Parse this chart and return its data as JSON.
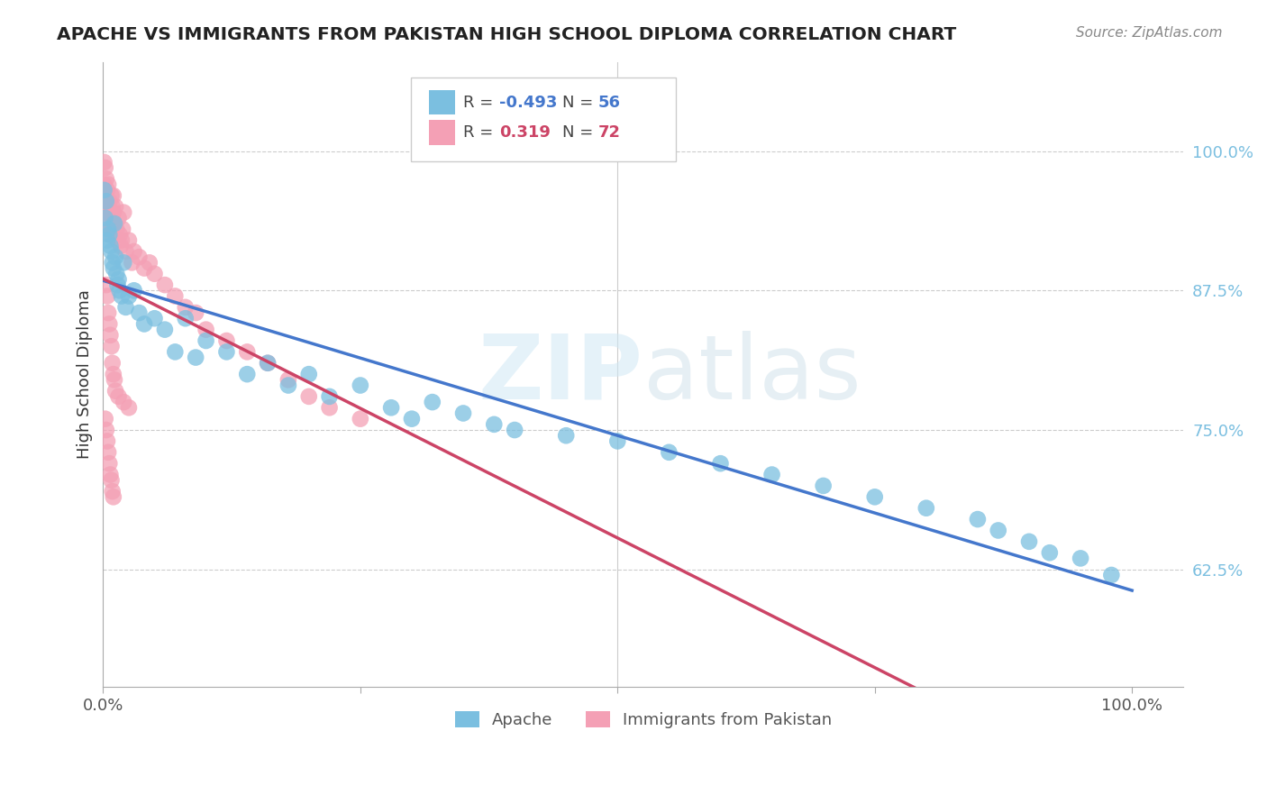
{
  "title": "APACHE VS IMMIGRANTS FROM PAKISTAN HIGH SCHOOL DIPLOMA CORRELATION CHART",
  "source": "Source: ZipAtlas.com",
  "ylabel": "High School Diploma",
  "xlim": [
    0.0,
    1.05
  ],
  "ylim": [
    0.52,
    1.08
  ],
  "xticks": [
    0.0,
    0.25,
    0.5,
    0.75,
    1.0
  ],
  "xtick_labels": [
    "0.0%",
    "",
    "",
    "",
    "100.0%"
  ],
  "ytick_labels": [
    "62.5%",
    "75.0%",
    "87.5%",
    "100.0%"
  ],
  "yticks": [
    0.625,
    0.75,
    0.875,
    1.0
  ],
  "apache_color": "#7bbfe0",
  "pakistan_color": "#f4a0b5",
  "apache_line_color": "#4477cc",
  "pakistan_line_color": "#cc4466",
  "watermark": "ZIPatlas",
  "background_color": "#ffffff",
  "apache_scatter_x": [
    0.001,
    0.002,
    0.003,
    0.004,
    0.005,
    0.006,
    0.007,
    0.008,
    0.009,
    0.01,
    0.011,
    0.012,
    0.013,
    0.014,
    0.015,
    0.016,
    0.018,
    0.02,
    0.022,
    0.025,
    0.03,
    0.035,
    0.04,
    0.05,
    0.06,
    0.07,
    0.08,
    0.09,
    0.1,
    0.12,
    0.14,
    0.16,
    0.18,
    0.2,
    0.22,
    0.25,
    0.28,
    0.3,
    0.32,
    0.35,
    0.38,
    0.4,
    0.45,
    0.5,
    0.55,
    0.6,
    0.65,
    0.7,
    0.75,
    0.8,
    0.85,
    0.87,
    0.9,
    0.92,
    0.95,
    0.98
  ],
  "apache_scatter_y": [
    0.965,
    0.94,
    0.955,
    0.92,
    0.93,
    0.925,
    0.915,
    0.91,
    0.9,
    0.895,
    0.935,
    0.905,
    0.89,
    0.88,
    0.885,
    0.875,
    0.87,
    0.9,
    0.86,
    0.87,
    0.875,
    0.855,
    0.845,
    0.85,
    0.84,
    0.82,
    0.85,
    0.815,
    0.83,
    0.82,
    0.8,
    0.81,
    0.79,
    0.8,
    0.78,
    0.79,
    0.77,
    0.76,
    0.775,
    0.765,
    0.755,
    0.75,
    0.745,
    0.74,
    0.73,
    0.72,
    0.71,
    0.7,
    0.69,
    0.68,
    0.67,
    0.66,
    0.65,
    0.64,
    0.635,
    0.62
  ],
  "pakistan_scatter_x": [
    0.001,
    0.001,
    0.002,
    0.002,
    0.003,
    0.003,
    0.004,
    0.004,
    0.005,
    0.005,
    0.006,
    0.006,
    0.007,
    0.007,
    0.008,
    0.008,
    0.009,
    0.009,
    0.01,
    0.01,
    0.011,
    0.012,
    0.013,
    0.014,
    0.015,
    0.016,
    0.017,
    0.018,
    0.019,
    0.02,
    0.022,
    0.025,
    0.028,
    0.03,
    0.035,
    0.04,
    0.045,
    0.05,
    0.06,
    0.07,
    0.08,
    0.09,
    0.1,
    0.12,
    0.14,
    0.16,
    0.18,
    0.2,
    0.22,
    0.25,
    0.003,
    0.004,
    0.005,
    0.006,
    0.007,
    0.008,
    0.009,
    0.01,
    0.011,
    0.012,
    0.002,
    0.003,
    0.004,
    0.005,
    0.006,
    0.007,
    0.008,
    0.009,
    0.01,
    0.015,
    0.02,
    0.025
  ],
  "pakistan_scatter_y": [
    0.99,
    0.97,
    0.985,
    0.96,
    0.975,
    0.955,
    0.965,
    0.945,
    0.97,
    0.95,
    0.955,
    0.935,
    0.945,
    0.925,
    0.93,
    0.96,
    0.95,
    0.94,
    0.945,
    0.96,
    0.935,
    0.95,
    0.93,
    0.92,
    0.94,
    0.925,
    0.915,
    0.92,
    0.93,
    0.945,
    0.91,
    0.92,
    0.9,
    0.91,
    0.905,
    0.895,
    0.9,
    0.89,
    0.88,
    0.87,
    0.86,
    0.855,
    0.84,
    0.83,
    0.82,
    0.81,
    0.795,
    0.78,
    0.77,
    0.76,
    0.88,
    0.87,
    0.855,
    0.845,
    0.835,
    0.825,
    0.81,
    0.8,
    0.795,
    0.785,
    0.76,
    0.75,
    0.74,
    0.73,
    0.72,
    0.71,
    0.705,
    0.695,
    0.69,
    0.78,
    0.775,
    0.77
  ]
}
